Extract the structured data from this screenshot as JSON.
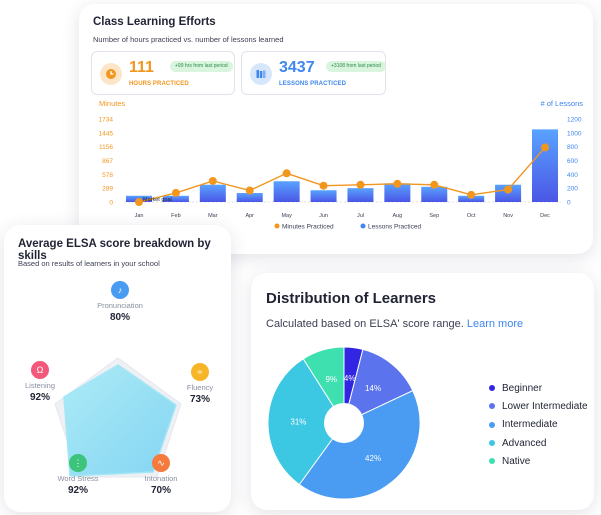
{
  "efforts": {
    "title": "Class Learning Efforts",
    "subtitle": "Number of hours practiced vs. number of lessons learned",
    "hours": {
      "value": "111",
      "label": "HOURS PRACTICED",
      "badge": "+99 hrs from last period",
      "icon": "clock-icon"
    },
    "lessons": {
      "value": "3437",
      "label": "LESSONS PRACTICED",
      "badge": "+3108 from last period",
      "icon": "books-icon"
    },
    "colors": {
      "orange": "#f2961e",
      "blue": "#3f86ee"
    }
  },
  "chart_data": {
    "type": "bar+line",
    "categories": [
      "Jan",
      "Feb",
      "Mar",
      "Apr",
      "May",
      "Jun",
      "Jul",
      "Aug",
      "Sep",
      "Oct",
      "Nov",
      "Dec"
    ],
    "series": [
      {
        "name": "Minutes Practiced",
        "type": "line",
        "axis": "left",
        "values": [
          0,
          190,
          440,
          240,
          600,
          340,
          360,
          380,
          360,
          150,
          260,
          1140
        ]
      },
      {
        "name": "Lessons Practiced",
        "type": "bar",
        "axis": "right",
        "values": [
          90,
          90,
          250,
          130,
          300,
          170,
          200,
          270,
          220,
          90,
          250,
          1050
        ]
      }
    ],
    "ylabel_left": "Minutes",
    "ylabel_right": "# of Lessons",
    "left_ticks": [
      "0",
      "289",
      "578",
      "867",
      "1156",
      "1445",
      "1734"
    ],
    "right_ticks": [
      "0",
      "200",
      "400",
      "600",
      "800",
      "1000",
      "1200"
    ],
    "ylim_left": [
      0,
      1734
    ],
    "ylim_right": [
      0,
      1200
    ],
    "annotation": "Market goal",
    "grid": false,
    "legend_position": "bottom"
  },
  "skills": {
    "title": "Average ELSA score breakdown by skills",
    "subtitle": "Based on results of learners in your school",
    "items": [
      {
        "name": "Pronunciation",
        "value": "80%",
        "icon": "microphone-icon",
        "color": "#4a9bf2",
        "glyph": "♪"
      },
      {
        "name": "Fluency",
        "value": "73%",
        "icon": "wave-icon",
        "color": "#f7b528",
        "glyph": "≈"
      },
      {
        "name": "Intonation",
        "value": "70%",
        "icon": "intonation-icon",
        "color": "#f57a3d",
        "glyph": "∿"
      },
      {
        "name": "Word Stress",
        "value": "92%",
        "icon": "soundbars-icon",
        "color": "#3cc47a",
        "glyph": "⋮"
      },
      {
        "name": "Listening",
        "value": "92%",
        "icon": "headphones-icon",
        "color": "#f2587a",
        "glyph": "Ω"
      }
    ]
  },
  "distribution": {
    "title": "Distribution of Learners",
    "subtitle": "Calculated based on ELSA' score range.",
    "link": "Learn more",
    "segments": [
      {
        "name": "Beginner",
        "percent": 4,
        "label": "4%",
        "color": "#3326e3"
      },
      {
        "name": "Lower Intermediate",
        "percent": 14,
        "label": "14%",
        "color": "#5b74ee"
      },
      {
        "name": "Intermediate",
        "percent": 42,
        "label": "42%",
        "color": "#4a9bf2"
      },
      {
        "name": "Advanced",
        "percent": 31,
        "label": "31%",
        "color": "#3cc7e3"
      },
      {
        "name": "Native",
        "percent": 9,
        "label": "9%",
        "color": "#3ee0b0"
      }
    ]
  }
}
